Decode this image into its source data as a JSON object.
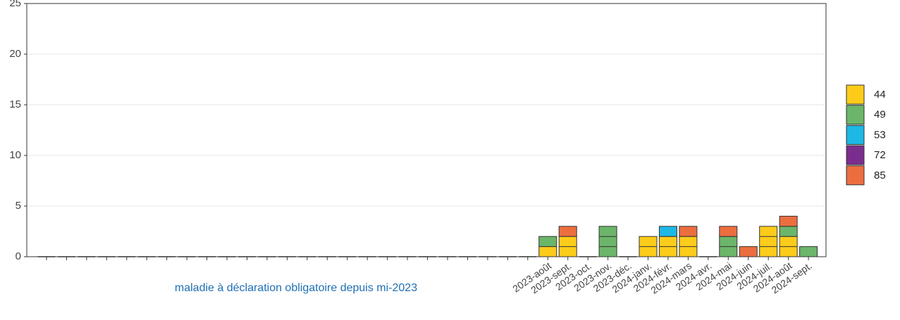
{
  "chart_data": {
    "type": "stacked_bar",
    "categories": [
      null,
      null,
      null,
      null,
      null,
      null,
      null,
      null,
      null,
      null,
      null,
      null,
      null,
      null,
      null,
      null,
      null,
      null,
      null,
      null,
      null,
      null,
      null,
      null,
      null,
      "2023-août",
      "2023-sept.",
      "2023-oct.",
      "2023-nov.",
      "2023-déc.",
      "2024-janv.",
      "2024-févr.",
      "2024-mars",
      "2024-avr.",
      "2024-mai",
      "2024-juin",
      "2024-juil.",
      "2024-août",
      "2024-sept."
    ],
    "series": [
      {
        "name": "44",
        "color": "#fdcc1a",
        "values": [
          0,
          0,
          0,
          0,
          0,
          0,
          0,
          0,
          0,
          0,
          0,
          0,
          0,
          0,
          0,
          0,
          0,
          0,
          0,
          0,
          0,
          0,
          0,
          0,
          0,
          1,
          2,
          0,
          0,
          0,
          2,
          2,
          2,
          0,
          0,
          0,
          3,
          2,
          0
        ]
      },
      {
        "name": "49",
        "color": "#6bb66a",
        "values": [
          0,
          0,
          0,
          0,
          0,
          0,
          0,
          0,
          0,
          0,
          0,
          0,
          0,
          0,
          0,
          0,
          0,
          0,
          0,
          0,
          0,
          0,
          0,
          0,
          0,
          1,
          0,
          0,
          3,
          0,
          0,
          0,
          0,
          0,
          2,
          0,
          0,
          1,
          1
        ]
      },
      {
        "name": "53",
        "color": "#1db8e4",
        "values": [
          0,
          0,
          0,
          0,
          0,
          0,
          0,
          0,
          0,
          0,
          0,
          0,
          0,
          0,
          0,
          0,
          0,
          0,
          0,
          0,
          0,
          0,
          0,
          0,
          0,
          0,
          0,
          0,
          0,
          0,
          0,
          1,
          0,
          0,
          0,
          0,
          0,
          0,
          0
        ]
      },
      {
        "name": "72",
        "color": "#7b2d8e",
        "values": [
          0,
          0,
          0,
          0,
          0,
          0,
          0,
          0,
          0,
          0,
          0,
          0,
          0,
          0,
          0,
          0,
          0,
          0,
          0,
          0,
          0,
          0,
          0,
          0,
          0,
          0,
          0,
          0,
          0,
          0,
          0,
          0,
          0,
          0,
          0,
          0,
          0,
          0,
          0
        ]
      },
      {
        "name": "85",
        "color": "#ec6e3f",
        "values": [
          0,
          0,
          0,
          0,
          0,
          0,
          0,
          0,
          0,
          0,
          0,
          0,
          0,
          0,
          0,
          0,
          0,
          0,
          0,
          0,
          0,
          0,
          0,
          0,
          0,
          0,
          1,
          0,
          0,
          0,
          0,
          0,
          1,
          0,
          1,
          1,
          0,
          1,
          0
        ]
      }
    ],
    "ylim": [
      0,
      25
    ],
    "yticks": [
      0,
      5,
      10,
      15,
      20,
      25
    ],
    "grid": true,
    "annotation": "maladie à déclaration obligatoire depuis mi-2023",
    "legend": "right"
  }
}
